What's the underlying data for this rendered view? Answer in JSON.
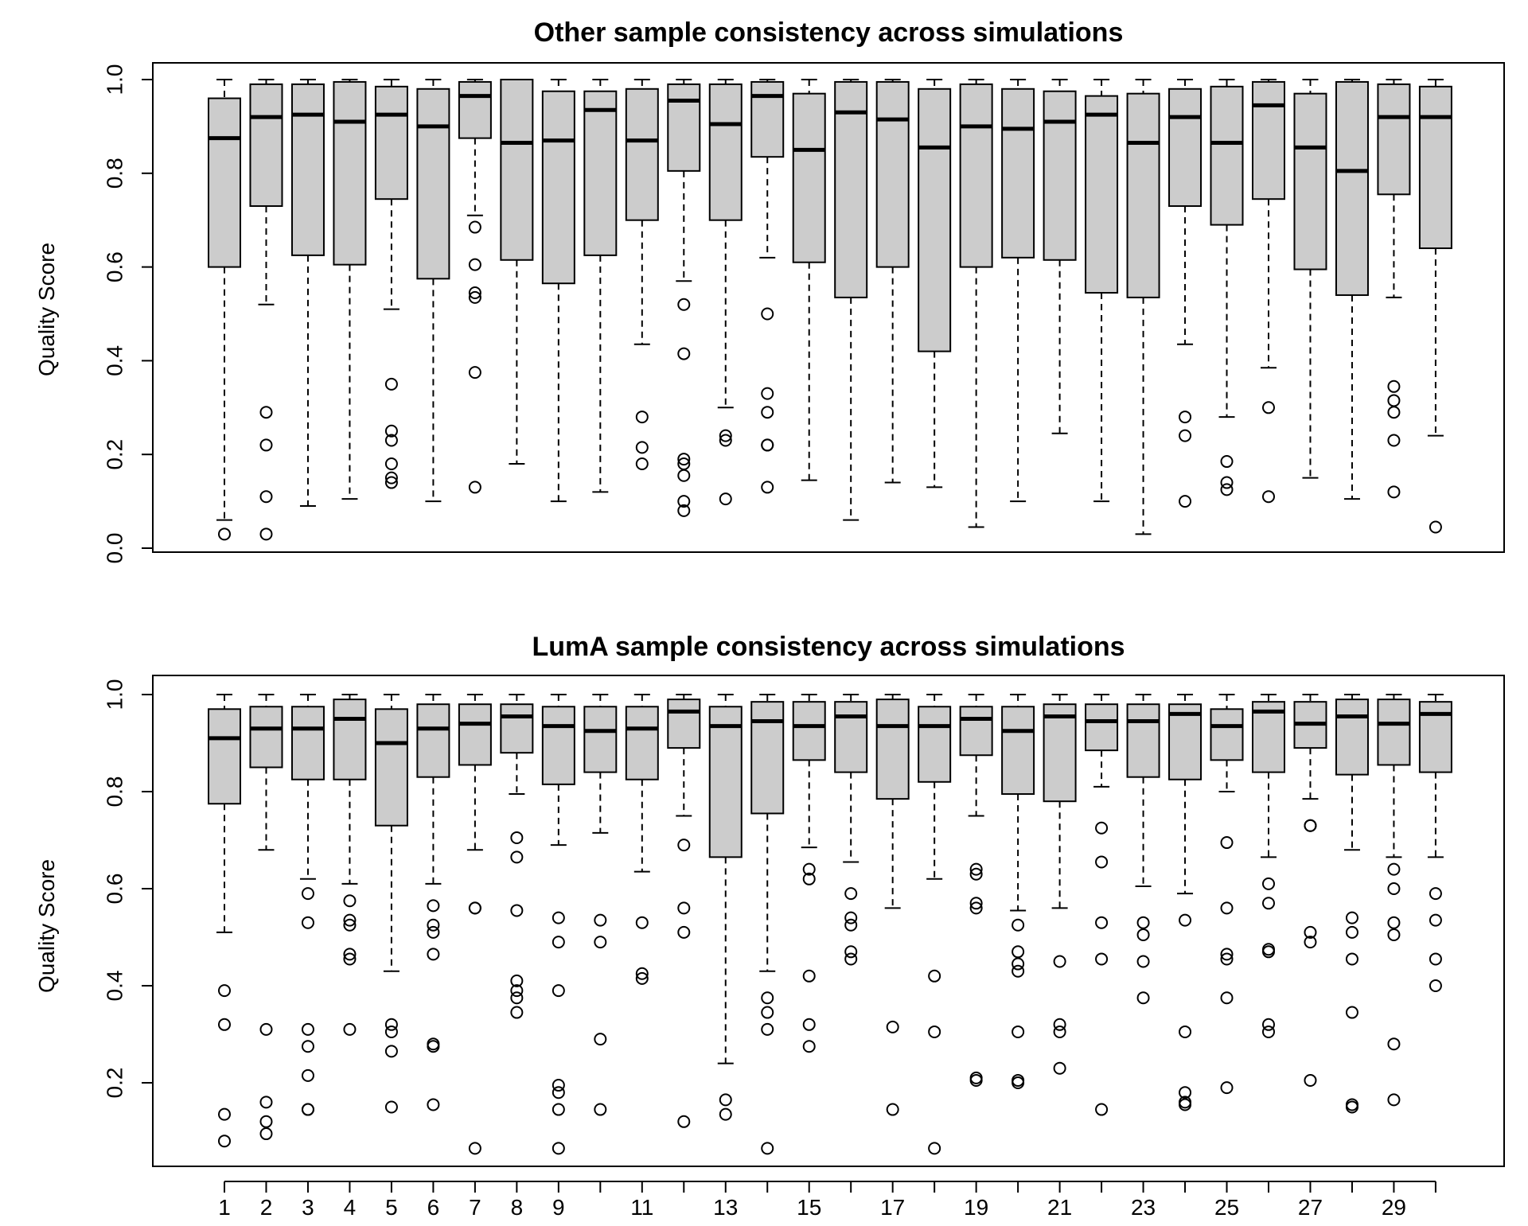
{
  "chart_data": [
    {
      "type": "box",
      "title": "Other sample consistency across simulations",
      "ylabel": "Quality Score",
      "xlabel": "",
      "ylim": [
        0.0,
        1.0
      ],
      "yticks": [
        "0.0",
        "0.2",
        "0.4",
        "0.6",
        "0.8",
        "1.0"
      ],
      "x_tick_labels_shown": false,
      "groups": [
        {
          "x": 1,
          "whisker_low": 0.06,
          "q1": 0.6,
          "median": 0.875,
          "q3": 0.96,
          "whisker_high": 1.0,
          "outliers": [
            0.03
          ]
        },
        {
          "x": 2,
          "whisker_low": 0.52,
          "q1": 0.73,
          "median": 0.92,
          "q3": 0.99,
          "whisker_high": 1.0,
          "outliers": [
            0.29,
            0.22,
            0.11,
            0.03
          ]
        },
        {
          "x": 3,
          "whisker_low": 0.09,
          "q1": 0.625,
          "median": 0.925,
          "q3": 0.99,
          "whisker_high": 1.0,
          "outliers": []
        },
        {
          "x": 4,
          "whisker_low": 0.105,
          "q1": 0.605,
          "median": 0.91,
          "q3": 0.995,
          "whisker_high": 1.0,
          "outliers": []
        },
        {
          "x": 5,
          "whisker_low": 0.51,
          "q1": 0.745,
          "median": 0.925,
          "q3": 0.985,
          "whisker_high": 1.0,
          "outliers": [
            0.35,
            0.25,
            0.23,
            0.18,
            0.15,
            0.14
          ]
        },
        {
          "x": 6,
          "whisker_low": 0.1,
          "q1": 0.575,
          "median": 0.9,
          "q3": 0.98,
          "whisker_high": 1.0,
          "outliers": []
        },
        {
          "x": 7,
          "whisker_low": 0.71,
          "q1": 0.875,
          "median": 0.965,
          "q3": 0.995,
          "whisker_high": 1.0,
          "outliers": [
            0.685,
            0.605,
            0.545,
            0.535,
            0.375,
            0.13
          ]
        },
        {
          "x": 8,
          "whisker_low": 0.18,
          "q1": 0.615,
          "median": 0.865,
          "q3": 1.0,
          "whisker_high": 1.0,
          "outliers": []
        },
        {
          "x": 9,
          "whisker_low": 0.1,
          "q1": 0.565,
          "median": 0.87,
          "q3": 0.975,
          "whisker_high": 1.0,
          "outliers": []
        },
        {
          "x": 10,
          "whisker_low": 0.12,
          "q1": 0.625,
          "median": 0.935,
          "q3": 0.975,
          "whisker_high": 1.0,
          "outliers": []
        },
        {
          "x": 11,
          "whisker_low": 0.435,
          "q1": 0.7,
          "median": 0.87,
          "q3": 0.98,
          "whisker_high": 1.0,
          "outliers": [
            0.28,
            0.215,
            0.18
          ]
        },
        {
          "x": 12,
          "whisker_low": 0.57,
          "q1": 0.805,
          "median": 0.955,
          "q3": 0.99,
          "whisker_high": 1.0,
          "outliers": [
            0.52,
            0.415,
            0.19,
            0.18,
            0.155,
            0.1,
            0.08
          ]
        },
        {
          "x": 13,
          "whisker_low": 0.3,
          "q1": 0.7,
          "median": 0.905,
          "q3": 0.99,
          "whisker_high": 1.0,
          "outliers": [
            0.24,
            0.23,
            0.105
          ]
        },
        {
          "x": 14,
          "whisker_low": 0.62,
          "q1": 0.835,
          "median": 0.965,
          "q3": 0.995,
          "whisker_high": 1.0,
          "outliers": [
            0.5,
            0.33,
            0.29,
            0.22,
            0.22,
            0.13
          ]
        },
        {
          "x": 15,
          "whisker_low": 0.145,
          "q1": 0.61,
          "median": 0.85,
          "q3": 0.97,
          "whisker_high": 1.0,
          "outliers": []
        },
        {
          "x": 16,
          "whisker_low": 0.06,
          "q1": 0.535,
          "median": 0.93,
          "q3": 0.995,
          "whisker_high": 1.0,
          "outliers": []
        },
        {
          "x": 17,
          "whisker_low": 0.14,
          "q1": 0.6,
          "median": 0.915,
          "q3": 0.995,
          "whisker_high": 1.0,
          "outliers": []
        },
        {
          "x": 18,
          "whisker_low": 0.13,
          "q1": 0.42,
          "median": 0.855,
          "q3": 0.98,
          "whisker_high": 1.0,
          "outliers": []
        },
        {
          "x": 19,
          "whisker_low": 0.045,
          "q1": 0.6,
          "median": 0.9,
          "q3": 0.99,
          "whisker_high": 1.0,
          "outliers": []
        },
        {
          "x": 20,
          "whisker_low": 0.1,
          "q1": 0.62,
          "median": 0.895,
          "q3": 0.98,
          "whisker_high": 1.0,
          "outliers": []
        },
        {
          "x": 21,
          "whisker_low": 0.245,
          "q1": 0.615,
          "median": 0.91,
          "q3": 0.975,
          "whisker_high": 1.0,
          "outliers": []
        },
        {
          "x": 22,
          "whisker_low": 0.1,
          "q1": 0.545,
          "median": 0.925,
          "q3": 0.965,
          "whisker_high": 1.0,
          "outliers": []
        },
        {
          "x": 23,
          "whisker_low": 0.03,
          "q1": 0.535,
          "median": 0.865,
          "q3": 0.97,
          "whisker_high": 1.0,
          "outliers": []
        },
        {
          "x": 24,
          "whisker_low": 0.435,
          "q1": 0.73,
          "median": 0.92,
          "q3": 0.98,
          "whisker_high": 1.0,
          "outliers": [
            0.28,
            0.24,
            0.1
          ]
        },
        {
          "x": 25,
          "whisker_low": 0.28,
          "q1": 0.69,
          "median": 0.865,
          "q3": 0.985,
          "whisker_high": 1.0,
          "outliers": [
            0.185,
            0.14,
            0.125
          ]
        },
        {
          "x": 26,
          "whisker_low": 0.385,
          "q1": 0.745,
          "median": 0.945,
          "q3": 0.995,
          "whisker_high": 1.0,
          "outliers": [
            0.3,
            0.11
          ]
        },
        {
          "x": 27,
          "whisker_low": 0.15,
          "q1": 0.595,
          "median": 0.855,
          "q3": 0.97,
          "whisker_high": 1.0,
          "outliers": []
        },
        {
          "x": 28,
          "whisker_low": 0.105,
          "q1": 0.54,
          "median": 0.805,
          "q3": 0.995,
          "whisker_high": 1.0,
          "outliers": []
        },
        {
          "x": 29,
          "whisker_low": 0.535,
          "q1": 0.755,
          "median": 0.92,
          "q3": 0.99,
          "whisker_high": 1.0,
          "outliers": [
            0.345,
            0.315,
            0.29,
            0.23,
            0.12
          ]
        },
        {
          "x": 30,
          "whisker_low": 0.24,
          "q1": 0.64,
          "median": 0.92,
          "q3": 0.985,
          "whisker_high": 1.0,
          "outliers": [
            0.045
          ]
        }
      ]
    },
    {
      "type": "box",
      "title": "LumA sample consistency across simulations",
      "ylabel": "Quality Score",
      "xlabel": "",
      "ylim": [
        0.035,
        1.0
      ],
      "yticks": [
        "0.2",
        "0.4",
        "0.6",
        "0.8",
        "1.0"
      ],
      "x_tick_labels": [
        "1",
        "2",
        "3",
        "4",
        "5",
        "6",
        "7",
        "8",
        "9",
        "11",
        "13",
        "15",
        "17",
        "19",
        "21",
        "23",
        "25",
        "27",
        "29"
      ],
      "groups": [
        {
          "x": 1,
          "whisker_low": 0.51,
          "q1": 0.775,
          "median": 0.91,
          "q3": 0.97,
          "whisker_high": 1.0,
          "outliers": [
            0.39,
            0.32,
            0.135,
            0.08
          ]
        },
        {
          "x": 2,
          "whisker_low": 0.68,
          "q1": 0.85,
          "median": 0.93,
          "q3": 0.975,
          "whisker_high": 1.0,
          "outliers": [
            0.31,
            0.16,
            0.12,
            0.095
          ]
        },
        {
          "x": 3,
          "whisker_low": 0.62,
          "q1": 0.825,
          "median": 0.93,
          "q3": 0.975,
          "whisker_high": 1.0,
          "outliers": [
            0.59,
            0.53,
            0.31,
            0.275,
            0.215,
            0.145,
            0.145
          ]
        },
        {
          "x": 4,
          "whisker_low": 0.61,
          "q1": 0.825,
          "median": 0.95,
          "q3": 0.99,
          "whisker_high": 1.0,
          "outliers": [
            0.575,
            0.535,
            0.525,
            0.465,
            0.455,
            0.31
          ]
        },
        {
          "x": 5,
          "whisker_low": 0.43,
          "q1": 0.73,
          "median": 0.9,
          "q3": 0.97,
          "whisker_high": 1.0,
          "outliers": [
            0.32,
            0.305,
            0.265,
            0.15
          ]
        },
        {
          "x": 6,
          "whisker_low": 0.61,
          "q1": 0.83,
          "median": 0.93,
          "q3": 0.98,
          "whisker_high": 1.0,
          "outliers": [
            0.565,
            0.525,
            0.51,
            0.465,
            0.28,
            0.275,
            0.155
          ]
        },
        {
          "x": 7,
          "whisker_low": 0.68,
          "q1": 0.855,
          "median": 0.94,
          "q3": 0.98,
          "whisker_high": 1.0,
          "outliers": [
            0.56,
            0.56,
            0.065
          ]
        },
        {
          "x": 8,
          "whisker_low": 0.795,
          "q1": 0.88,
          "median": 0.955,
          "q3": 0.98,
          "whisker_high": 1.0,
          "outliers": [
            0.705,
            0.665,
            0.555,
            0.41,
            0.39,
            0.375,
            0.345
          ]
        },
        {
          "x": 9,
          "whisker_low": 0.69,
          "q1": 0.815,
          "median": 0.935,
          "q3": 0.975,
          "whisker_high": 1.0,
          "outliers": [
            0.54,
            0.49,
            0.39,
            0.195,
            0.18,
            0.145,
            0.065
          ]
        },
        {
          "x": 10,
          "whisker_low": 0.715,
          "q1": 0.84,
          "median": 0.925,
          "q3": 0.975,
          "whisker_high": 1.0,
          "outliers": [
            0.535,
            0.49,
            0.29,
            0.145
          ]
        },
        {
          "x": 11,
          "whisker_low": 0.635,
          "q1": 0.825,
          "median": 0.93,
          "q3": 0.975,
          "whisker_high": 1.0,
          "outliers": [
            0.53,
            0.425,
            0.415
          ]
        },
        {
          "x": 12,
          "whisker_low": 0.75,
          "q1": 0.89,
          "median": 0.965,
          "q3": 0.99,
          "whisker_high": 1.0,
          "outliers": [
            0.69,
            0.56,
            0.51,
            0.12
          ]
        },
        {
          "x": 13,
          "whisker_low": 0.24,
          "q1": 0.665,
          "median": 0.935,
          "q3": 0.975,
          "whisker_high": 1.0,
          "outliers": [
            0.165,
            0.135
          ]
        },
        {
          "x": 14,
          "whisker_low": 0.43,
          "q1": 0.755,
          "median": 0.945,
          "q3": 0.985,
          "whisker_high": 1.0,
          "outliers": [
            0.375,
            0.345,
            0.31,
            0.065
          ]
        },
        {
          "x": 15,
          "whisker_low": 0.685,
          "q1": 0.865,
          "median": 0.935,
          "q3": 0.985,
          "whisker_high": 1.0,
          "outliers": [
            0.64,
            0.62,
            0.42,
            0.32,
            0.275
          ]
        },
        {
          "x": 16,
          "whisker_low": 0.655,
          "q1": 0.84,
          "median": 0.955,
          "q3": 0.985,
          "whisker_high": 1.0,
          "outliers": [
            0.59,
            0.54,
            0.525,
            0.47,
            0.455
          ]
        },
        {
          "x": 17,
          "whisker_low": 0.56,
          "q1": 0.785,
          "median": 0.935,
          "q3": 0.99,
          "whisker_high": 1.0,
          "outliers": [
            0.315,
            0.145
          ]
        },
        {
          "x": 18,
          "whisker_low": 0.62,
          "q1": 0.82,
          "median": 0.935,
          "q3": 0.975,
          "whisker_high": 1.0,
          "outliers": [
            0.42,
            0.305,
            0.065
          ]
        },
        {
          "x": 19,
          "whisker_low": 0.75,
          "q1": 0.875,
          "median": 0.95,
          "q3": 0.975,
          "whisker_high": 1.0,
          "outliers": [
            0.64,
            0.63,
            0.57,
            0.56,
            0.21,
            0.205
          ]
        },
        {
          "x": 20,
          "whisker_low": 0.555,
          "q1": 0.795,
          "median": 0.925,
          "q3": 0.975,
          "whisker_high": 1.0,
          "outliers": [
            0.525,
            0.47,
            0.445,
            0.43,
            0.305,
            0.205,
            0.2
          ]
        },
        {
          "x": 21,
          "whisker_low": 0.56,
          "q1": 0.78,
          "median": 0.955,
          "q3": 0.98,
          "whisker_high": 1.0,
          "outliers": [
            0.45,
            0.32,
            0.305,
            0.23
          ]
        },
        {
          "x": 22,
          "whisker_low": 0.81,
          "q1": 0.885,
          "median": 0.945,
          "q3": 0.98,
          "whisker_high": 1.0,
          "outliers": [
            0.725,
            0.655,
            0.53,
            0.455,
            0.145
          ]
        },
        {
          "x": 23,
          "whisker_low": 0.605,
          "q1": 0.83,
          "median": 0.945,
          "q3": 0.98,
          "whisker_high": 1.0,
          "outliers": [
            0.53,
            0.505,
            0.45,
            0.375
          ]
        },
        {
          "x": 24,
          "whisker_low": 0.59,
          "q1": 0.825,
          "median": 0.96,
          "q3": 0.98,
          "whisker_high": 1.0,
          "outliers": [
            0.535,
            0.305,
            0.18,
            0.16,
            0.155
          ]
        },
        {
          "x": 25,
          "whisker_low": 0.8,
          "q1": 0.865,
          "median": 0.935,
          "q3": 0.97,
          "whisker_high": 1.0,
          "outliers": [
            0.695,
            0.56,
            0.465,
            0.455,
            0.375,
            0.19
          ]
        },
        {
          "x": 26,
          "whisker_low": 0.665,
          "q1": 0.84,
          "median": 0.965,
          "q3": 0.985,
          "whisker_high": 1.0,
          "outliers": [
            0.61,
            0.57,
            0.475,
            0.47,
            0.32,
            0.305
          ]
        },
        {
          "x": 27,
          "whisker_low": 0.785,
          "q1": 0.89,
          "median": 0.94,
          "q3": 0.985,
          "whisker_high": 1.0,
          "outliers": [
            0.73,
            0.73,
            0.51,
            0.49,
            0.205
          ]
        },
        {
          "x": 28,
          "whisker_low": 0.68,
          "q1": 0.835,
          "median": 0.955,
          "q3": 0.99,
          "whisker_high": 1.0,
          "outliers": [
            0.54,
            0.51,
            0.455,
            0.345,
            0.155,
            0.15
          ]
        },
        {
          "x": 29,
          "whisker_low": 0.665,
          "q1": 0.855,
          "median": 0.94,
          "q3": 0.99,
          "whisker_high": 1.0,
          "outliers": [
            0.64,
            0.6,
            0.53,
            0.505,
            0.28,
            0.165
          ]
        },
        {
          "x": 30,
          "whisker_low": 0.665,
          "q1": 0.84,
          "median": 0.96,
          "q3": 0.985,
          "whisker_high": 1.0,
          "outliers": [
            0.59,
            0.535,
            0.455,
            0.4
          ]
        }
      ]
    }
  ]
}
